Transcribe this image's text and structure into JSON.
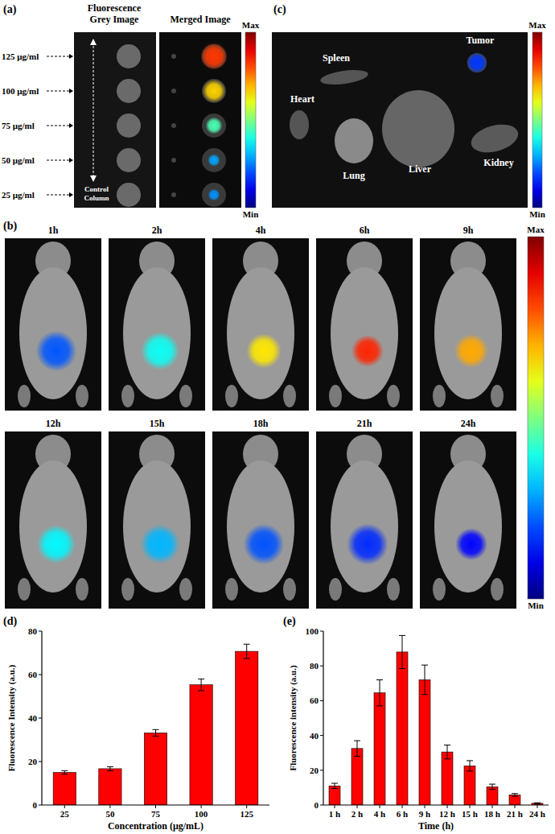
{
  "chart_data": [
    {
      "type": "bar",
      "title": "(d)",
      "x_label": "Concentration (μg/mL)",
      "y_label": "Fluorescence Intensity (a.u.)",
      "categories": [
        "25",
        "50",
        "75",
        "100",
        "125"
      ],
      "values": [
        15,
        16.7,
        33.2,
        55.3,
        70.7
      ],
      "errors": [
        0.8,
        0.9,
        1.5,
        2.7,
        3.3
      ],
      "color": "#ff0000",
      "ylim": [
        0,
        80
      ],
      "yticks": [
        0,
        20,
        40,
        60,
        80
      ]
    },
    {
      "type": "bar",
      "title": "(e)",
      "x_label": "Time (h)",
      "y_label": "Fluorescence intensity (a.u.)",
      "categories": [
        "1 h",
        "2 h",
        "4 h",
        "6 h",
        "9 h",
        "12 h",
        "15 h",
        "18 h",
        "21 h",
        "24 h"
      ],
      "values": [
        11,
        32.5,
        64.5,
        88,
        72,
        30.5,
        22.5,
        10.5,
        5.8,
        1
      ],
      "errors": [
        1.5,
        4.5,
        7.5,
        9.5,
        8.5,
        4,
        3,
        1.5,
        0.8,
        0.3
      ],
      "color": "#ff0000",
      "ylim": [
        0,
        100
      ],
      "yticks": [
        0,
        20,
        40,
        60,
        80,
        100
      ]
    }
  ],
  "panels": {
    "a": {
      "label": "(a)",
      "grey_header": [
        "Fluorescence",
        "Grey Image"
      ],
      "merged_header": "Merged Image",
      "concentrations": [
        "125 μg/ml",
        "100 μg/ml",
        "75 μg/ml",
        "50 μg/ml",
        "25 μg/ml"
      ],
      "control": [
        "Control",
        "Column"
      ],
      "max": "Max",
      "min": "Min"
    },
    "b": {
      "label": "(b)",
      "times": [
        "1h",
        "2h",
        "4h",
        "6h",
        "9h",
        "12h",
        "15h",
        "18h",
        "21h",
        "24h"
      ],
      "max": "Max",
      "min": "Min"
    },
    "c": {
      "label": "(c)",
      "organs": [
        "Spleen",
        "Tumor",
        "Heart",
        "Lung",
        "Liver",
        "Kidney"
      ],
      "max": "Max",
      "min": "Min"
    }
  }
}
